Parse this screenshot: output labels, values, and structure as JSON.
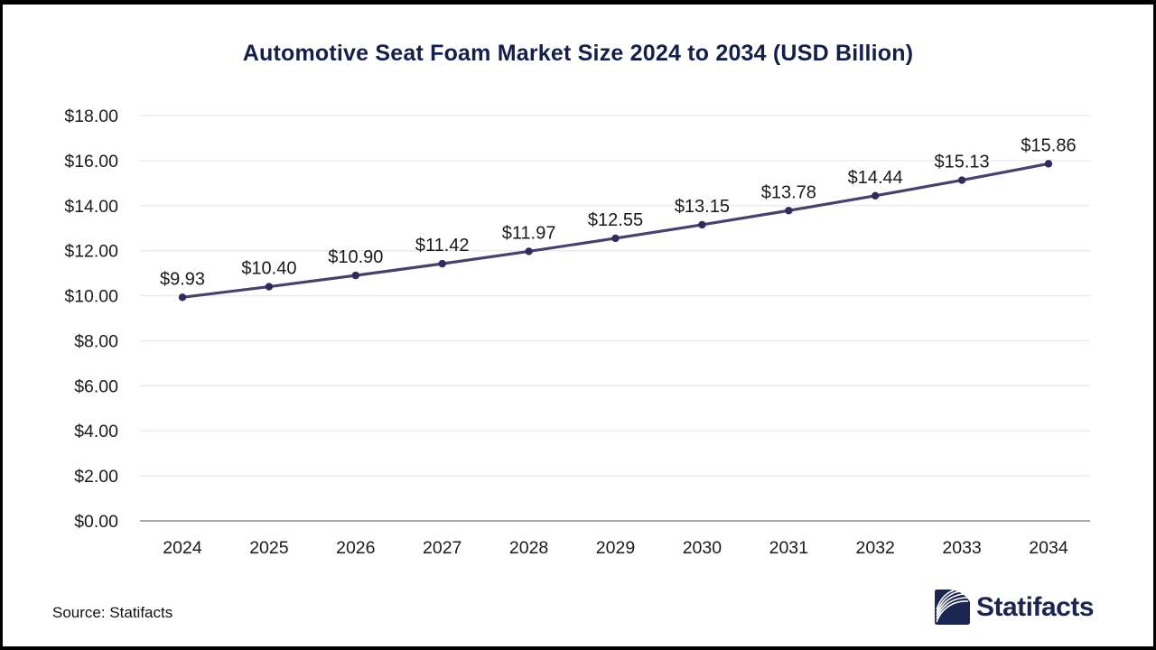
{
  "title": "Automotive Seat Foam Market Size 2024 to 2034 (USD Billion)",
  "footer": {
    "source": "Source: Statifacts",
    "brand": "Statifacts"
  },
  "colors": {
    "title": "#14204a",
    "line": "#45436b",
    "marker": "#2e2c5c",
    "grid": "#e9e9e9",
    "axis": "#a9a9a9",
    "text": "#1a1a1a",
    "brand_navy": "#1b2650"
  },
  "chart_data": {
    "type": "line",
    "title": "Automotive Seat Foam Market Size 2024 to 2034 (USD Billion)",
    "categories": [
      "2024",
      "2025",
      "2026",
      "2027",
      "2028",
      "2029",
      "2030",
      "2031",
      "2032",
      "2033",
      "2034"
    ],
    "series": [
      {
        "name": "Market Size (USD Billion)",
        "values": [
          9.93,
          10.4,
          10.9,
          11.42,
          11.97,
          12.55,
          13.15,
          13.78,
          14.44,
          15.13,
          15.86
        ]
      }
    ],
    "point_labels": [
      "$9.93",
      "$10.40",
      "$10.90",
      "$11.42",
      "$11.97",
      "$12.55",
      "$13.15",
      "$13.78",
      "$14.44",
      "$15.13",
      "$15.86"
    ],
    "y_ticks": [
      0,
      2,
      4,
      6,
      8,
      10,
      12,
      14,
      16,
      18
    ],
    "y_tick_labels": [
      "$0.00",
      "$2.00",
      "$4.00",
      "$6.00",
      "$8.00",
      "$10.00",
      "$12.00",
      "$14.00",
      "$16.00",
      "$18.00"
    ],
    "ylim": [
      0,
      18
    ],
    "xlabel": "",
    "ylabel": "",
    "grid": true,
    "legend": "none"
  }
}
